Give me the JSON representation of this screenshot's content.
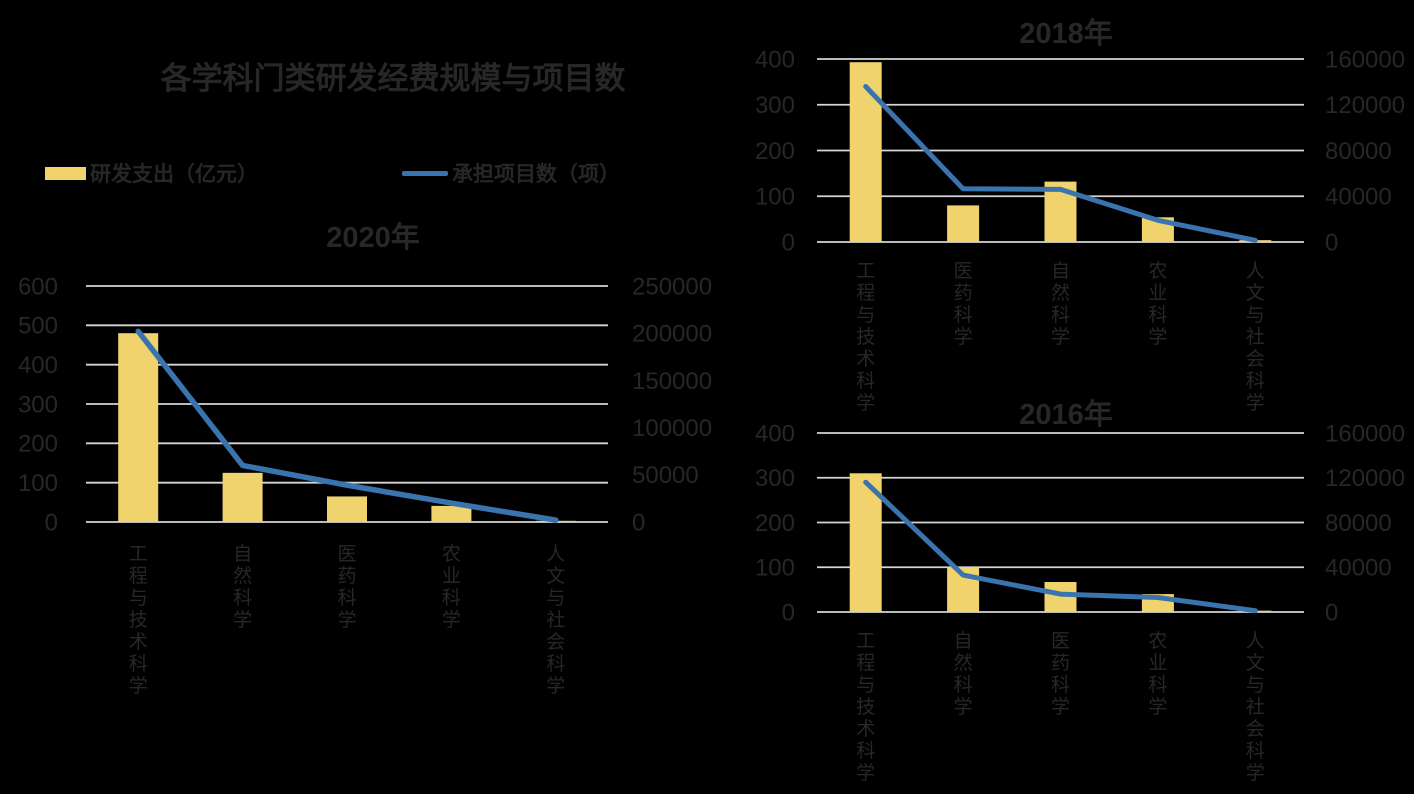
{
  "canvas": {
    "background": "#000000",
    "text_color": "#272727",
    "grid_color": "#D6D6D6",
    "bar_color": "#F1D36E",
    "line_color": "#3A74AE"
  },
  "main_title": "各学科门类研发经费规模与项目数",
  "legend": {
    "items": [
      {
        "label": "研发支出（亿元）",
        "swatch": "bar-swatch",
        "color": "#F1D36E"
      },
      {
        "label": "承担项目数（项）",
        "swatch": "line-swatch",
        "color": "#3A74AE"
      }
    ]
  },
  "chart_data": [
    {
      "type": "bar+line",
      "title": "2020年",
      "categories": [
        "工程与技术科学",
        "自然科学",
        "医药科学",
        "农业科学",
        "人文与社会科学"
      ],
      "series": [
        {
          "name": "研发支出（亿元）",
          "type": "bar",
          "axis": "left",
          "values": [
            480,
            125,
            65,
            41,
            3
          ]
        },
        {
          "name": "承担项目数（项）",
          "type": "line",
          "axis": "right",
          "values": [
            202000,
            60000,
            39000,
            20000,
            2000
          ]
        }
      ],
      "left_axis": {
        "min": 0,
        "max": 600,
        "ticks": [
          0,
          100,
          200,
          300,
          400,
          500,
          600
        ]
      },
      "right_axis": {
        "min": 0,
        "max": 250000,
        "ticks": [
          0,
          50000,
          100000,
          150000,
          200000,
          250000
        ]
      },
      "grid": true,
      "legend_position": "top-left-shared"
    },
    {
      "type": "bar+line",
      "title": "2018年",
      "categories": [
        "工程与技术科学",
        "医药科学",
        "自然科学",
        "农业科学",
        "人文与社会科学"
      ],
      "series": [
        {
          "name": "研发支出（亿元）",
          "type": "bar",
          "axis": "left",
          "values": [
            393,
            80,
            132,
            54,
            4
          ]
        },
        {
          "name": "承担项目数（项）",
          "type": "line",
          "axis": "right",
          "values": [
            136000,
            46500,
            46000,
            19000,
            1500
          ]
        }
      ],
      "left_axis": {
        "min": 0,
        "max": 400,
        "ticks": [
          0,
          100,
          200,
          300,
          400
        ]
      },
      "right_axis": {
        "min": 0,
        "max": 160000,
        "ticks": [
          0,
          40000,
          80000,
          120000,
          160000
        ]
      },
      "grid": true,
      "legend_position": "top-left-shared"
    },
    {
      "type": "bar+line",
      "title": "2016年",
      "categories": [
        "工程与技术科学",
        "自然科学",
        "医药科学",
        "农业科学",
        "人文与社会科学"
      ],
      "series": [
        {
          "name": "研发支出（亿元）",
          "type": "bar",
          "axis": "left",
          "values": [
            310,
            100,
            67,
            40,
            3
          ]
        },
        {
          "name": "承担项目数（项）",
          "type": "line",
          "axis": "right",
          "values": [
            116000,
            33000,
            16000,
            13000,
            1200
          ]
        }
      ],
      "left_axis": {
        "min": 0,
        "max": 400,
        "ticks": [
          0,
          100,
          200,
          300,
          400
        ]
      },
      "right_axis": {
        "min": 0,
        "max": 160000,
        "ticks": [
          0,
          40000,
          80000,
          120000,
          160000
        ]
      },
      "grid": true,
      "legend_position": "top-left-shared"
    }
  ]
}
